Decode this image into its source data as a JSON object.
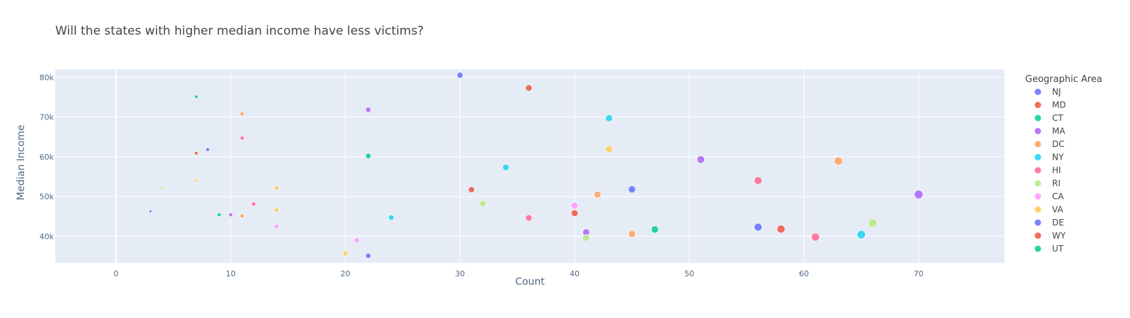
{
  "chart_data": {
    "type": "scatter",
    "title": "Will the states with higher median income have less victims?",
    "xlabel": "Count",
    "ylabel": "Median Income",
    "xlim": [
      -5.3,
      77.5
    ],
    "ylim": [
      33300,
      82000
    ],
    "x_ticks": [
      0,
      10,
      20,
      30,
      40,
      50,
      60,
      70
    ],
    "y_ticks": [
      40000,
      50000,
      60000,
      70000,
      80000
    ],
    "y_tick_labels": [
      "40k",
      "50k",
      "60k",
      "70k",
      "80k"
    ],
    "grid": true,
    "plot_bgcolor": "#E5ECF6",
    "legend_title": "Geographic Area",
    "legend_position": "right",
    "series": [
      {
        "name": "NJ",
        "color": "#636EFA",
        "points": [
          [
            30,
            80500
          ],
          [
            22,
            35100
          ],
          [
            56,
            42300
          ],
          [
            45,
            51800
          ],
          [
            8,
            61800
          ],
          [
            3,
            46300
          ]
        ]
      },
      {
        "name": "MD",
        "color": "#EF553B",
        "points": [
          [
            36,
            77300
          ],
          [
            31,
            51700
          ],
          [
            40,
            45800
          ],
          [
            58,
            41800
          ],
          [
            7,
            60900
          ]
        ]
      },
      {
        "name": "CT",
        "color": "#00CC96",
        "points": [
          [
            7,
            75100
          ],
          [
            22,
            60200
          ],
          [
            47,
            41700
          ],
          [
            9,
            45400
          ]
        ]
      },
      {
        "name": "MA",
        "color": "#AB63FA",
        "points": [
          [
            22,
            71800
          ],
          [
            51,
            59300
          ],
          [
            41,
            41000
          ],
          [
            10,
            45400
          ],
          [
            70,
            50500
          ]
        ]
      },
      {
        "name": "DC",
        "color": "#FFA15A",
        "points": [
          [
            11,
            70800
          ],
          [
            63,
            58900
          ],
          [
            42,
            50500
          ],
          [
            45,
            40600
          ],
          [
            11,
            45100
          ]
        ]
      },
      {
        "name": "NY",
        "color": "#19D3F3",
        "points": [
          [
            43,
            69700
          ],
          [
            34,
            57300
          ],
          [
            24,
            44700
          ],
          [
            65,
            40400
          ]
        ]
      },
      {
        "name": "HI",
        "color": "#FF6692",
        "points": [
          [
            11,
            64700
          ],
          [
            56,
            54000
          ],
          [
            12,
            48100
          ],
          [
            36,
            44600
          ],
          [
            61,
            39800
          ]
        ]
      },
      {
        "name": "RI",
        "color": "#B6E880",
        "points": [
          [
            32,
            48200
          ],
          [
            41,
            39600
          ],
          [
            66,
            43300
          ],
          [
            4,
            52200
          ]
        ]
      },
      {
        "name": "CA",
        "color": "#FF97FF",
        "points": [
          [
            40,
            47700
          ],
          [
            21,
            39000
          ],
          [
            14,
            42500
          ]
        ]
      },
      {
        "name": "VA",
        "color": "#FECB52",
        "points": [
          [
            43,
            61900
          ],
          [
            14,
            52100
          ],
          [
            14,
            46600
          ],
          [
            20,
            35700
          ],
          [
            7,
            54000
          ]
        ]
      },
      {
        "name": "DE",
        "color": "#636EFA",
        "points": []
      },
      {
        "name": "WY",
        "color": "#EF553B",
        "points": []
      },
      {
        "name": "UT",
        "color": "#00CC96",
        "points": []
      }
    ]
  }
}
